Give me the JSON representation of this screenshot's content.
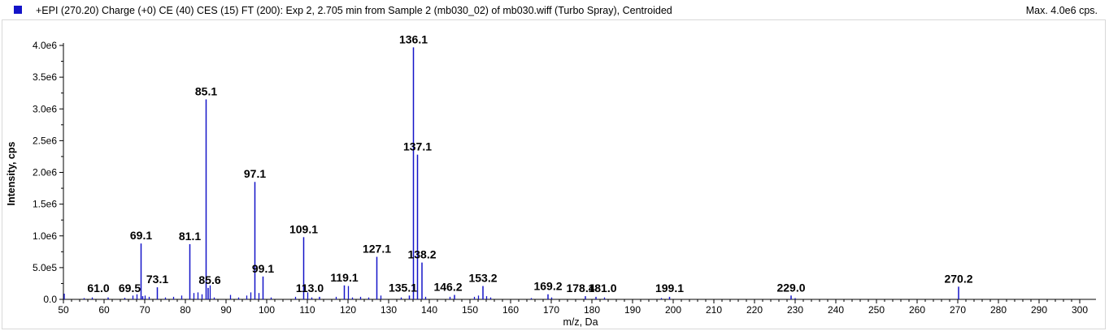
{
  "header": {
    "title": "+EPI (270.20) Charge (+0) CE (40) CES (15) FT (200): Exp 2, 2.705 min from Sample 2 (mb030_02) of mb030.wiff (Turbo Spray), Centroided",
    "max_label": "Max. 4.0e6 cps."
  },
  "colors": {
    "series": "#1414c8",
    "axis": "#000000"
  },
  "chart_data": {
    "type": "bar",
    "xlabel": "m/z, Da",
    "ylabel": "Intensity, cps",
    "xlim": [
      50,
      302
    ],
    "ylim": [
      0,
      4000000.0
    ],
    "x_ticks": [
      "50",
      "60",
      "70",
      "80",
      "90",
      "100",
      "110",
      "120",
      "130",
      "140",
      "150",
      "160",
      "170",
      "180",
      "190",
      "200",
      "210",
      "220",
      "230",
      "240",
      "250",
      "260",
      "270",
      "280",
      "290",
      "300"
    ],
    "y_ticks": [
      "0.0",
      "5.0e5",
      "1.0e6",
      "1.5e6",
      "2.0e6",
      "2.5e6",
      "3.0e6",
      "3.5e6",
      "4.0e6"
    ],
    "labeled_peaks": [
      {
        "mz": 136.1,
        "intensity": 3970000,
        "label": "136.1"
      },
      {
        "mz": 85.1,
        "intensity": 3150000,
        "label": "85.1"
      },
      {
        "mz": 137.1,
        "intensity": 2280000,
        "label": "137.1"
      },
      {
        "mz": 97.1,
        "intensity": 1850000,
        "label": "97.1"
      },
      {
        "mz": 109.1,
        "intensity": 980000,
        "label": "109.1"
      },
      {
        "mz": 69.1,
        "intensity": 880000,
        "label": "69.1"
      },
      {
        "mz": 81.1,
        "intensity": 870000,
        "label": "81.1"
      },
      {
        "mz": 127.1,
        "intensity": 670000,
        "label": "127.1"
      },
      {
        "mz": 138.2,
        "intensity": 580000,
        "label": "138.2"
      },
      {
        "mz": 99.1,
        "intensity": 360000,
        "label": "99.1"
      },
      {
        "mz": 119.1,
        "intensity": 220000,
        "label": "119.1"
      },
      {
        "mz": 153.2,
        "intensity": 210000,
        "label": "153.2"
      },
      {
        "mz": 270.2,
        "intensity": 200000,
        "label": "270.2"
      },
      {
        "mz": 85.6,
        "intensity": 180000,
        "label": "85.6"
      },
      {
        "mz": 73.1,
        "intensity": 190000,
        "label": "73.1"
      },
      {
        "mz": 169.2,
        "intensity": 80000,
        "label": "169.2"
      },
      {
        "mz": 135.1,
        "intensity": 60000,
        "label": "135.1"
      },
      {
        "mz": 146.2,
        "intensity": 70000,
        "label": "146.2"
      },
      {
        "mz": 178.4,
        "intensity": 50000,
        "label": "178.4"
      },
      {
        "mz": 181.0,
        "intensity": 40000,
        "label": "181.0"
      },
      {
        "mz": 199.1,
        "intensity": 40000,
        "label": "199.1"
      },
      {
        "mz": 229.0,
        "intensity": 60000,
        "label": "229.0"
      },
      {
        "mz": 113.0,
        "intensity": 40000,
        "label": "113.0"
      },
      {
        "mz": 61.0,
        "intensity": 30000,
        "label": "61.0"
      },
      {
        "mz": 69.5,
        "intensity": 50000,
        "label": "69.5"
      }
    ],
    "minor_peaks": [
      {
        "mz": 50.2,
        "intensity": 90000
      },
      {
        "mz": 55.1,
        "intensity": 20000
      },
      {
        "mz": 57.1,
        "intensity": 30000
      },
      {
        "mz": 65.1,
        "intensity": 25000
      },
      {
        "mz": 67.1,
        "intensity": 60000
      },
      {
        "mz": 68.1,
        "intensity": 80000
      },
      {
        "mz": 70.1,
        "intensity": 60000
      },
      {
        "mz": 71.1,
        "intensity": 40000
      },
      {
        "mz": 75.1,
        "intensity": 30000
      },
      {
        "mz": 77.1,
        "intensity": 40000
      },
      {
        "mz": 79.1,
        "intensity": 60000
      },
      {
        "mz": 82.1,
        "intensity": 100000
      },
      {
        "mz": 83.1,
        "intensity": 110000
      },
      {
        "mz": 84.1,
        "intensity": 80000
      },
      {
        "mz": 86.1,
        "intensity": 220000
      },
      {
        "mz": 87.1,
        "intensity": 30000
      },
      {
        "mz": 91.1,
        "intensity": 70000
      },
      {
        "mz": 93.1,
        "intensity": 30000
      },
      {
        "mz": 95.1,
        "intensity": 60000
      },
      {
        "mz": 96.1,
        "intensity": 110000
      },
      {
        "mz": 98.1,
        "intensity": 100000
      },
      {
        "mz": 101.1,
        "intensity": 30000
      },
      {
        "mz": 107.1,
        "intensity": 40000
      },
      {
        "mz": 110.1,
        "intensity": 110000
      },
      {
        "mz": 111.1,
        "intensity": 30000
      },
      {
        "mz": 117.1,
        "intensity": 40000
      },
      {
        "mz": 120.1,
        "intensity": 210000
      },
      {
        "mz": 121.1,
        "intensity": 30000
      },
      {
        "mz": 123.1,
        "intensity": 40000
      },
      {
        "mz": 125.1,
        "intensity": 30000
      },
      {
        "mz": 128.1,
        "intensity": 60000
      },
      {
        "mz": 133.1,
        "intensity": 30000
      },
      {
        "mz": 139.1,
        "intensity": 40000
      },
      {
        "mz": 145.1,
        "intensity": 40000
      },
      {
        "mz": 151.1,
        "intensity": 40000
      },
      {
        "mz": 152.1,
        "intensity": 60000
      },
      {
        "mz": 154.1,
        "intensity": 50000
      },
      {
        "mz": 155.1,
        "intensity": 30000
      },
      {
        "mz": 165.1,
        "intensity": 20000
      },
      {
        "mz": 170.1,
        "intensity": 30000
      },
      {
        "mz": 183.1,
        "intensity": 30000
      },
      {
        "mz": 197.1,
        "intensity": 20000
      },
      {
        "mz": 230.0,
        "intensity": 20000
      }
    ],
    "grid": false
  }
}
